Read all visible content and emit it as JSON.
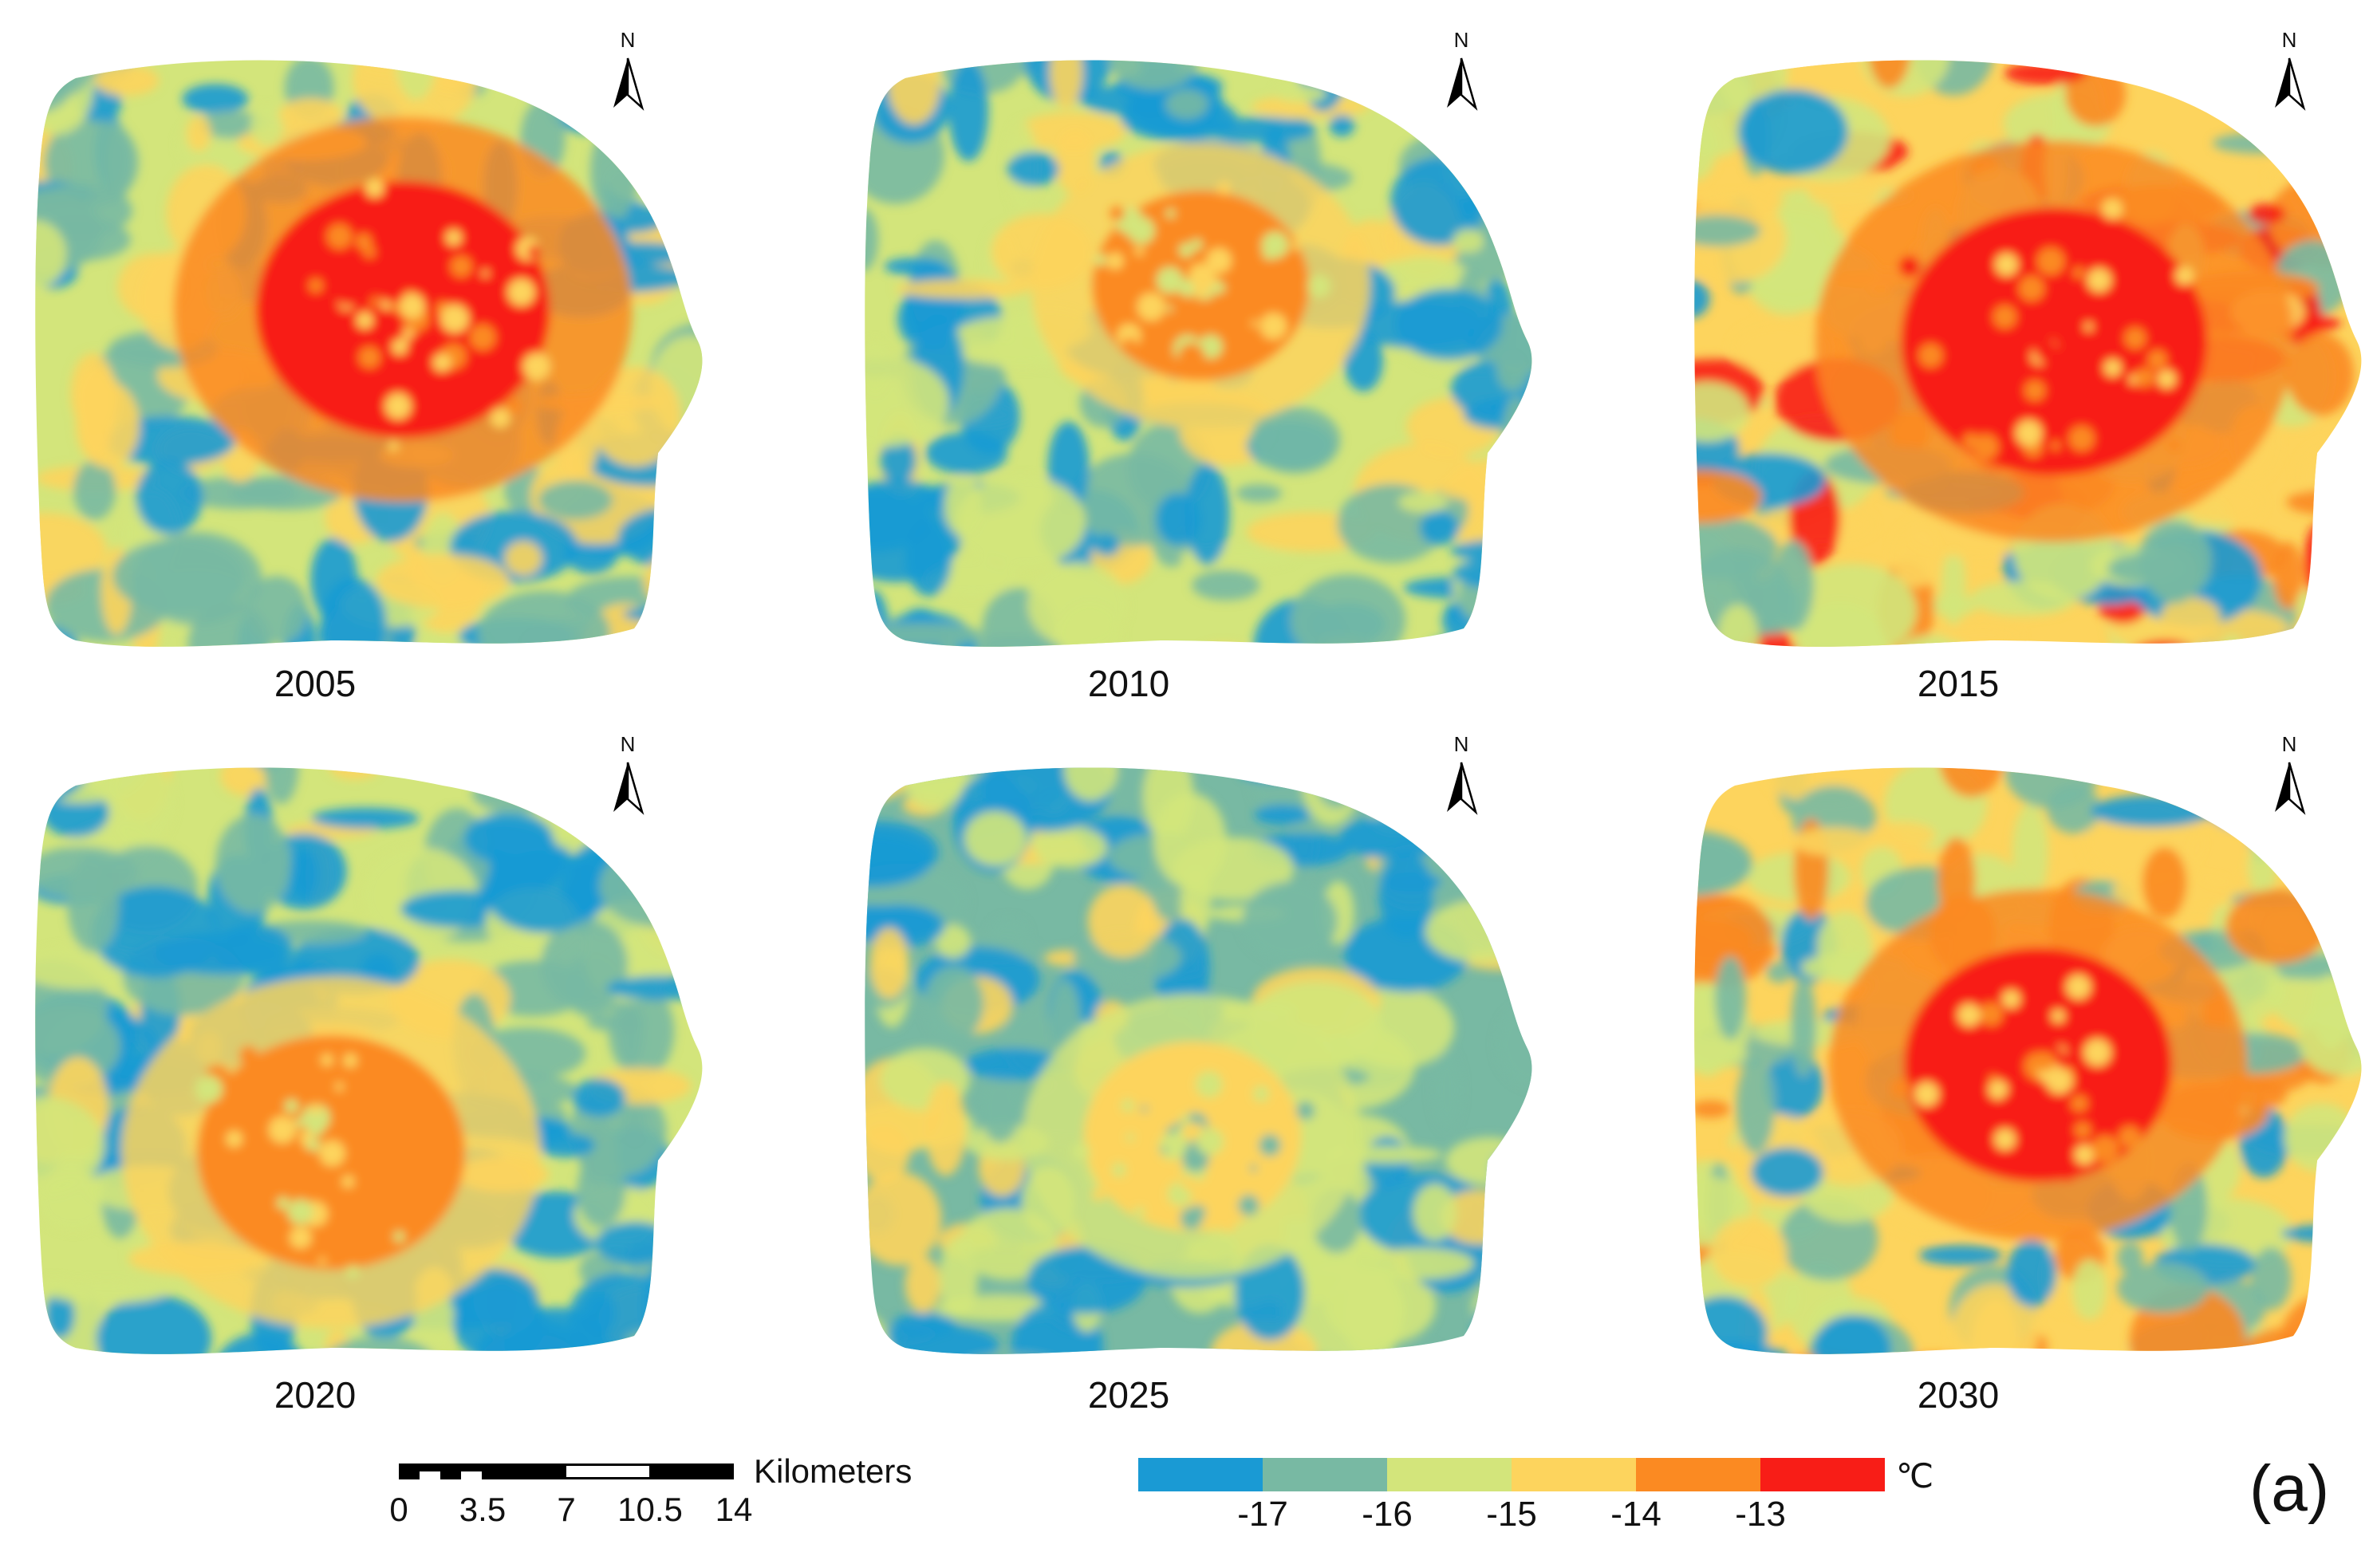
{
  "panels": [
    {
      "year": "2005",
      "pattern": "city-core-center-east"
    },
    {
      "year": "2010",
      "pattern": "city-core-north-center"
    },
    {
      "year": "2015",
      "pattern": "city-core-large"
    },
    {
      "year": "2020",
      "pattern": "city-core-southwest"
    },
    {
      "year": "2025",
      "pattern": "mostly-cool-smooth"
    },
    {
      "year": "2030",
      "pattern": "city-core-center"
    }
  ],
  "north_arrow": {
    "label": "N",
    "icon": "north-arrow-icon"
  },
  "scale_bar": {
    "unit": "Kilometers",
    "ticks": [
      "0",
      "3.5",
      "7",
      "10.5",
      "14"
    ]
  },
  "legend": {
    "unit": "℃",
    "colors": [
      "#1a9ad4",
      "#78b9a3",
      "#d3e57b",
      "#fdd45d",
      "#fb8a22",
      "#f81d17"
    ],
    "ticks": [
      "-17",
      "-16",
      "-15",
      "-14",
      "-13"
    ]
  },
  "panel_label": "(a)"
}
